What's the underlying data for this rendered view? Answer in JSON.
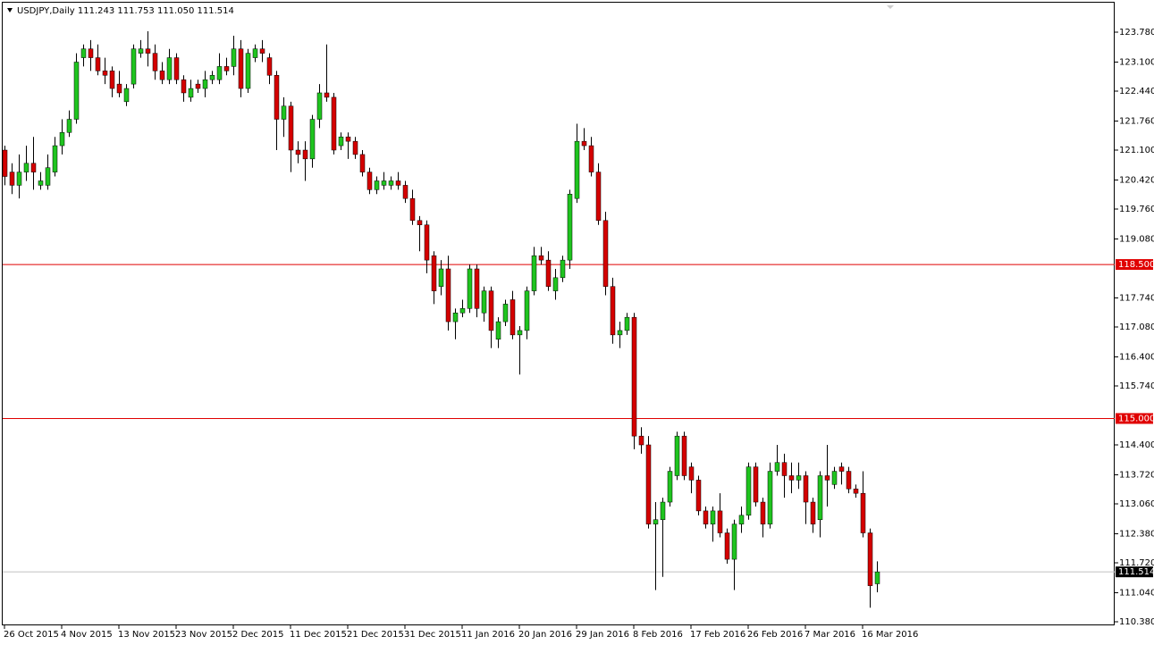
{
  "chart_data": {
    "type": "candlestick",
    "title": "USDJPY,Daily  111.243 111.753 111.050 111.514",
    "x": [
      "26 Oct 2015",
      null,
      null,
      null,
      null,
      null,
      null,
      null,
      "4 Nov 2015",
      null,
      null,
      null,
      null,
      null,
      null,
      null,
      "13 Nov 2015",
      null,
      null,
      null,
      null,
      null,
      null,
      null,
      "23 Nov 2015",
      null,
      null,
      null,
      null,
      null,
      null,
      null,
      "2 Dec 2015",
      null,
      null,
      null,
      null,
      null,
      null,
      null,
      "11 Dec 2015",
      null,
      null,
      null,
      null,
      null,
      null,
      null,
      "21 Dec 2015",
      null,
      null,
      null,
      null,
      null,
      null,
      null,
      "31 Dec 2015",
      null,
      null,
      null,
      null,
      null,
      null,
      null,
      "11 Jan 2016",
      null,
      null,
      null,
      null,
      null,
      null,
      null,
      "20 Jan 2016",
      null,
      null,
      null,
      null,
      null,
      null,
      null,
      "29 Jan 2016",
      null,
      null,
      null,
      null,
      null,
      null,
      null,
      "8 Feb 2016",
      null,
      null,
      null,
      null,
      null,
      null,
      null,
      "17 Feb 2016",
      null,
      null,
      null,
      null,
      null,
      null,
      null,
      "26 Feb 2016",
      null,
      null,
      null,
      null,
      null,
      null,
      null,
      "7 Mar 2016",
      null,
      null,
      null,
      null,
      null,
      null,
      null,
      "16 Mar 2016",
      null,
      null
    ],
    "open": [
      121.1,
      120.6,
      120.3,
      120.6,
      120.8,
      120.3,
      120.3,
      120.6,
      121.2,
      121.5,
      121.8,
      123.2,
      123.4,
      123.2,
      122.9,
      122.9,
      122.6,
      122.2,
      122.6,
      123.3,
      123.4,
      123.3,
      122.9,
      122.7,
      123.2,
      122.7,
      122.3,
      122.6,
      122.5,
      122.7,
      122.7,
      123.0,
      123.0,
      123.4,
      122.5,
      123.2,
      123.4,
      123.2,
      122.8,
      121.8,
      122.1,
      121.1,
      121.1,
      120.9,
      121.8,
      122.4,
      122.3,
      121.2,
      121.4,
      121.3,
      121.0,
      120.6,
      120.2,
      120.3,
      120.3,
      120.4,
      120.3,
      120.0,
      119.5,
      119.4,
      118.7,
      118.0,
      118.4,
      117.2,
      117.4,
      117.5,
      118.4,
      117.4,
      117.9,
      116.8,
      117.2,
      117.7,
      116.9,
      117.0,
      117.9,
      118.7,
      118.6,
      117.9,
      118.2,
      118.6,
      120.0,
      121.3,
      121.2,
      120.6,
      119.5,
      118.0,
      116.9,
      117.0,
      117.3,
      114.6,
      114.4,
      112.6,
      112.7,
      113.1,
      113.7,
      114.6,
      113.9,
      113.6,
      112.9,
      112.6,
      112.9,
      112.4,
      111.8,
      112.6,
      112.8,
      113.9,
      113.1,
      112.6,
      113.8,
      114.0,
      113.7,
      113.6,
      113.7,
      113.1,
      112.7,
      113.7,
      113.5,
      113.9,
      113.8,
      113.4,
      113.3,
      112.4,
      111.243
    ],
    "high": [
      121.2,
      120.8,
      121.0,
      121.2,
      121.4,
      120.6,
      121.0,
      121.4,
      121.8,
      122.0,
      123.3,
      123.5,
      123.6,
      123.5,
      123.2,
      123.0,
      122.9,
      122.6,
      123.5,
      123.6,
      123.8,
      123.5,
      123.1,
      123.4,
      123.3,
      122.8,
      122.7,
      122.7,
      122.9,
      122.9,
      123.3,
      123.2,
      123.7,
      123.6,
      123.4,
      123.5,
      123.6,
      123.3,
      122.9,
      122.3,
      122.2,
      121.3,
      121.3,
      121.9,
      122.6,
      123.5,
      122.4,
      121.5,
      121.5,
      121.4,
      121.1,
      120.7,
      120.5,
      120.6,
      120.5,
      120.6,
      120.4,
      120.2,
      119.6,
      119.5,
      118.8,
      118.6,
      118.7,
      117.5,
      117.7,
      118.5,
      118.5,
      118.0,
      118.0,
      117.3,
      117.7,
      117.9,
      117.1,
      118.0,
      118.9,
      118.9,
      118.8,
      118.4,
      118.7,
      120.2,
      121.7,
      121.6,
      121.4,
      120.8,
      119.7,
      118.2,
      117.2,
      117.4,
      117.4,
      114.8,
      114.6,
      113.1,
      113.2,
      113.9,
      114.7,
      114.7,
      114.0,
      113.7,
      113.0,
      113.0,
      113.3,
      112.5,
      112.7,
      113.0,
      114.0,
      114.0,
      113.2,
      114.0,
      114.4,
      114.2,
      114.0,
      114.0,
      113.8,
      113.2,
      113.8,
      114.4,
      113.9,
      114.0,
      113.9,
      113.5,
      113.8,
      112.5,
      111.753
    ],
    "low": [
      120.3,
      120.1,
      120.0,
      120.4,
      120.2,
      120.2,
      120.2,
      120.5,
      121.0,
      121.4,
      121.7,
      123.0,
      122.9,
      122.8,
      122.6,
      122.3,
      122.3,
      122.1,
      122.5,
      123.2,
      123.0,
      122.7,
      122.6,
      122.6,
      122.6,
      122.2,
      122.2,
      122.4,
      122.3,
      122.6,
      122.6,
      122.8,
      122.8,
      122.3,
      122.4,
      123.1,
      123.1,
      122.6,
      121.1,
      121.4,
      120.6,
      120.8,
      120.4,
      120.7,
      121.6,
      122.2,
      121.0,
      121.1,
      120.9,
      120.9,
      120.5,
      120.1,
      120.1,
      120.2,
      120.2,
      120.2,
      119.9,
      119.4,
      118.8,
      118.3,
      117.6,
      117.8,
      117.0,
      116.8,
      117.3,
      117.4,
      117.3,
      117.2,
      116.6,
      116.6,
      117.1,
      116.8,
      116.0,
      116.8,
      117.8,
      118.5,
      117.9,
      117.7,
      118.1,
      118.4,
      119.9,
      121.1,
      120.5,
      119.4,
      117.8,
      116.7,
      116.6,
      116.9,
      114.3,
      114.2,
      112.5,
      111.1,
      111.4,
      113.0,
      113.6,
      113.6,
      113.3,
      112.8,
      112.5,
      112.2,
      112.3,
      111.7,
      111.1,
      112.4,
      112.7,
      113.0,
      112.3,
      112.5,
      113.7,
      113.2,
      113.3,
      113.4,
      112.6,
      112.4,
      112.3,
      113.0,
      113.4,
      113.5,
      113.3,
      113.2,
      112.3,
      110.7,
      111.05
    ],
    "close": [
      120.5,
      120.3,
      120.6,
      120.8,
      120.6,
      120.4,
      120.7,
      121.2,
      121.5,
      121.8,
      123.1,
      123.4,
      123.2,
      122.9,
      122.8,
      122.5,
      122.4,
      122.5,
      123.4,
      123.4,
      123.3,
      122.9,
      122.7,
      123.2,
      122.7,
      122.4,
      122.5,
      122.5,
      122.7,
      122.8,
      123.0,
      122.9,
      123.4,
      122.5,
      123.3,
      123.4,
      123.3,
      122.8,
      121.8,
      122.1,
      121.1,
      121.0,
      120.9,
      121.8,
      122.4,
      122.3,
      121.1,
      121.4,
      121.3,
      121.0,
      120.6,
      120.2,
      120.4,
      120.4,
      120.4,
      120.3,
      120.0,
      119.5,
      119.4,
      118.6,
      117.9,
      118.4,
      117.2,
      117.4,
      117.5,
      118.4,
      117.5,
      117.9,
      117.0,
      117.2,
      117.6,
      116.9,
      117.0,
      117.9,
      118.7,
      118.6,
      118.0,
      118.2,
      118.6,
      120.1,
      121.3,
      121.2,
      120.6,
      119.5,
      118.0,
      116.9,
      117.0,
      117.3,
      114.6,
      114.4,
      112.6,
      112.7,
      113.1,
      113.8,
      114.6,
      113.7,
      113.6,
      112.9,
      112.6,
      112.9,
      112.4,
      111.8,
      112.6,
      112.8,
      113.9,
      113.1,
      112.6,
      113.8,
      114.0,
      113.7,
      113.6,
      113.7,
      113.1,
      112.6,
      113.7,
      113.6,
      113.8,
      113.8,
      113.4,
      113.3,
      112.4,
      111.2,
      111.514
    ],
    "up_color": "#1fc41f",
    "down_color": "#d40000",
    "ylim": [
      110.299,
      124.45
    ],
    "yticks": [
      {
        "value": 123.78,
        "label": "123.780"
      },
      {
        "value": 123.1,
        "label": "123.100"
      },
      {
        "value": 122.44,
        "label": "122.440"
      },
      {
        "value": 121.76,
        "label": "121.760"
      },
      {
        "value": 121.1,
        "label": "121.100"
      },
      {
        "value": 120.42,
        "label": "120.420"
      },
      {
        "value": 119.76,
        "label": "119.760"
      },
      {
        "value": 119.08,
        "label": "119.080"
      },
      {
        "value": 117.74,
        "label": "117.740"
      },
      {
        "value": 117.08,
        "label": "117.080"
      },
      {
        "value": 116.4,
        "label": "116.400"
      },
      {
        "value": 115.74,
        "label": "115.740"
      },
      {
        "value": 114.4,
        "label": "114.400"
      },
      {
        "value": 113.72,
        "label": "113.720"
      },
      {
        "value": 113.06,
        "label": "113.060"
      },
      {
        "value": 112.38,
        "label": "112.380"
      },
      {
        "value": 111.72,
        "label": "111.720"
      },
      {
        "value": 111.04,
        "label": "111.040"
      },
      {
        "value": 110.38,
        "label": "110.380"
      }
    ],
    "levels": [
      {
        "value": 118.5,
        "label": "118.500",
        "color": "#e00000"
      },
      {
        "value": 115,
        "label": "115.000",
        "color": "#e00000"
      }
    ],
    "last_price": {
      "value": 111.514,
      "label": "111.514",
      "color": "#c0c0c0"
    }
  }
}
